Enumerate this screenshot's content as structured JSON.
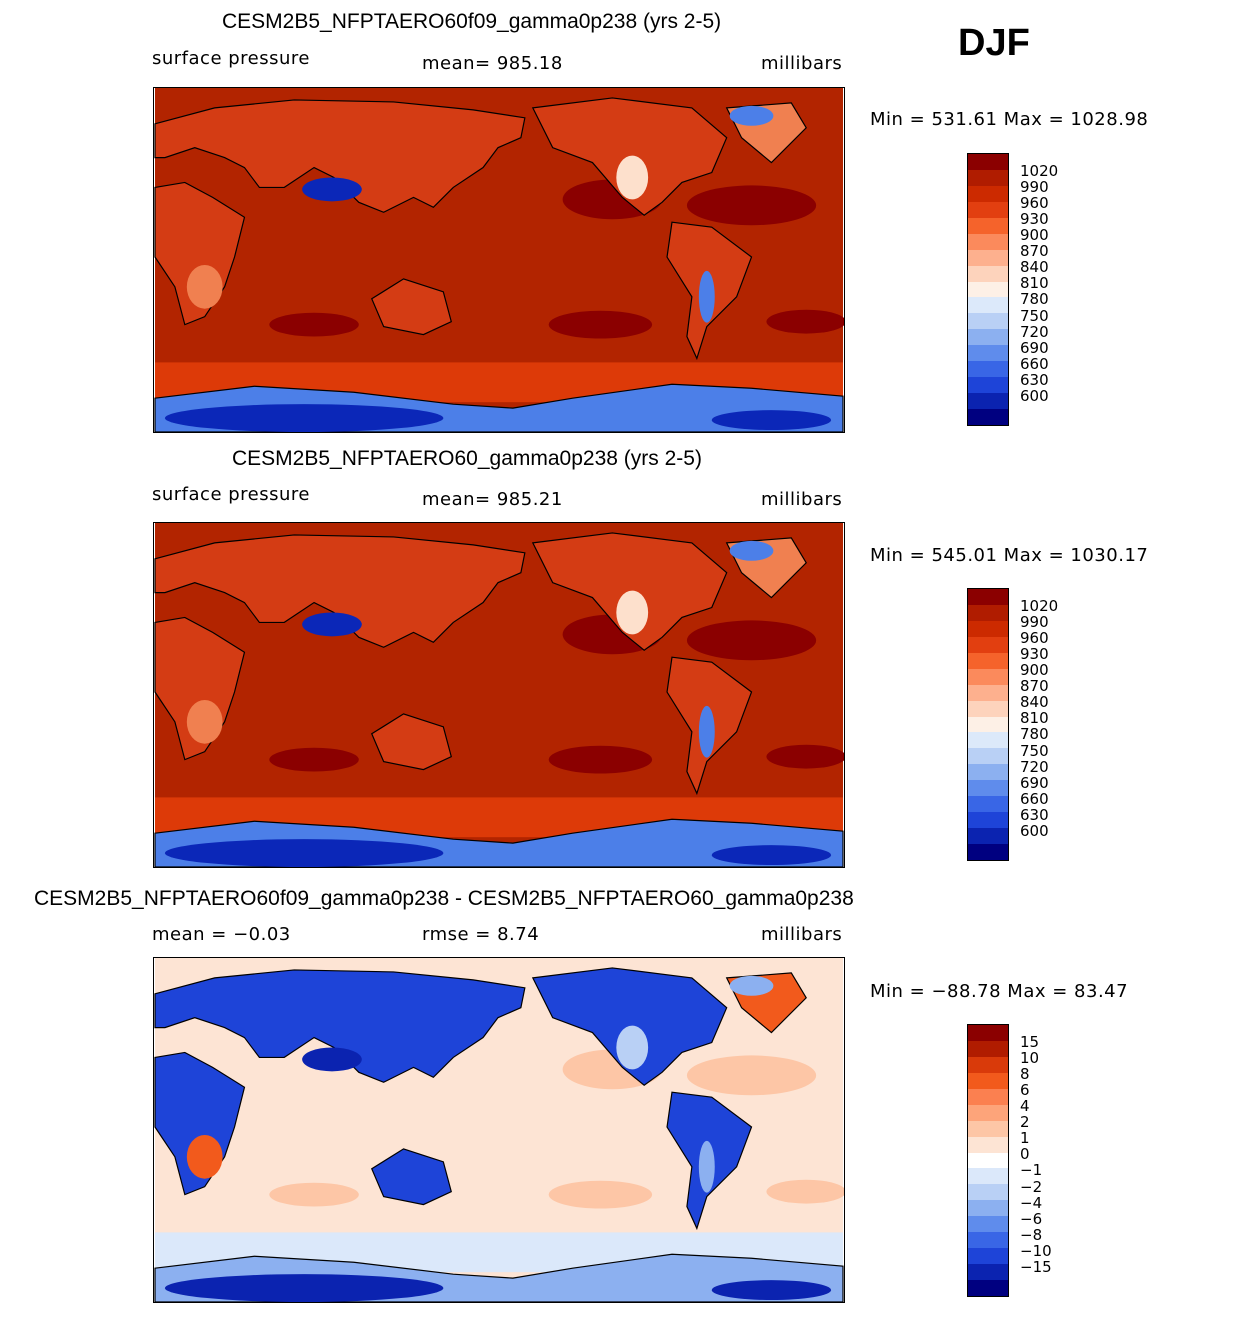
{
  "season": "DJF",
  "panels": [
    {
      "title": "CESM2B5_NFPTAERO60f09_gamma0p238 (yrs 2-5)",
      "left_label": "surface pressure",
      "center_label": "mean= 985.18",
      "right_label": "millibars",
      "minmax": "Min = 531.61 Max = 1028.98",
      "colorbar": {
        "labels": [
          "1020",
          "990",
          "960",
          "930",
          "900",
          "870",
          "840",
          "810",
          "780",
          "750",
          "720",
          "690",
          "660",
          "630",
          "600"
        ],
        "colors": [
          "#8b0000",
          "#b01c00",
          "#cc2a00",
          "#e23f10",
          "#f5632b",
          "#fb8a5c",
          "#fdb08e",
          "#fdd3bc",
          "#fdf0e6",
          "#dce9fa",
          "#b9d0f5",
          "#8cb0f0",
          "#5f8cec",
          "#3966e6",
          "#1e44d8",
          "#0b23b0",
          "#000080"
        ]
      },
      "map_colors": {
        "ocean": "#b22400",
        "land_high": "#d43c14",
        "land_mid": "#f08050",
        "land_low": "#fde0cc",
        "ice": "#4c7fe8",
        "ice_deep": "#0b27b8",
        "highs": "#8b0000",
        "south_band": "#dd3a08"
      }
    },
    {
      "title": "CESM2B5_NFPTAERO60_gamma0p238 (yrs 2-5)",
      "left_label": "surface pressure",
      "center_label": "mean= 985.21",
      "right_label": "millibars",
      "minmax": "Min = 545.01 Max = 1030.17",
      "colorbar": {
        "labels": [
          "1020",
          "990",
          "960",
          "930",
          "900",
          "870",
          "840",
          "810",
          "780",
          "750",
          "720",
          "690",
          "660",
          "630",
          "600"
        ],
        "colors": [
          "#8b0000",
          "#b01c00",
          "#cc2a00",
          "#e23f10",
          "#f5632b",
          "#fb8a5c",
          "#fdb08e",
          "#fdd3bc",
          "#fdf0e6",
          "#dce9fa",
          "#b9d0f5",
          "#8cb0f0",
          "#5f8cec",
          "#3966e6",
          "#1e44d8",
          "#0b23b0",
          "#000080"
        ]
      },
      "map_colors": {
        "ocean": "#b22400",
        "land_high": "#d43c14",
        "land_mid": "#f08050",
        "land_low": "#fde0cc",
        "ice": "#4c7fe8",
        "ice_deep": "#0b27b8",
        "highs": "#8b0000",
        "south_band": "#dd3a08"
      }
    },
    {
      "title": "CESM2B5_NFPTAERO60f09_gamma0p238 - CESM2B5_NFPTAERO60_gamma0p238",
      "left_label": "mean =   −0.03",
      "center_label": "rmse =    8.74",
      "right_label": "millibars",
      "minmax": "Min = −88.78 Max =  83.47",
      "colorbar": {
        "labels": [
          "15",
          "10",
          "8",
          "6",
          "4",
          "2",
          "1",
          "0",
          "−1",
          "−2",
          "−4",
          "−6",
          "−8",
          "−10",
          "−15"
        ],
        "colors": [
          "#8b0000",
          "#b01c00",
          "#d93a0a",
          "#f25a1c",
          "#fb8050",
          "#fda47a",
          "#fdc6a6",
          "#fde4d4",
          "#ffffff",
          "#dbe8fa",
          "#b9d0f5",
          "#8cb0f0",
          "#5f8cec",
          "#3966e6",
          "#1e44d8",
          "#0b23b0",
          "#000080"
        ]
      },
      "map_colors": {
        "ocean": "#fde4d4",
        "land_high": "#1e44d8",
        "land_mid": "#f25a1c",
        "land_low": "#b9d0f5",
        "ice": "#8cb0f0",
        "ice_deep": "#0b23b0",
        "highs": "#fdc6a6",
        "south_band": "#dbe8fa"
      }
    }
  ]
}
